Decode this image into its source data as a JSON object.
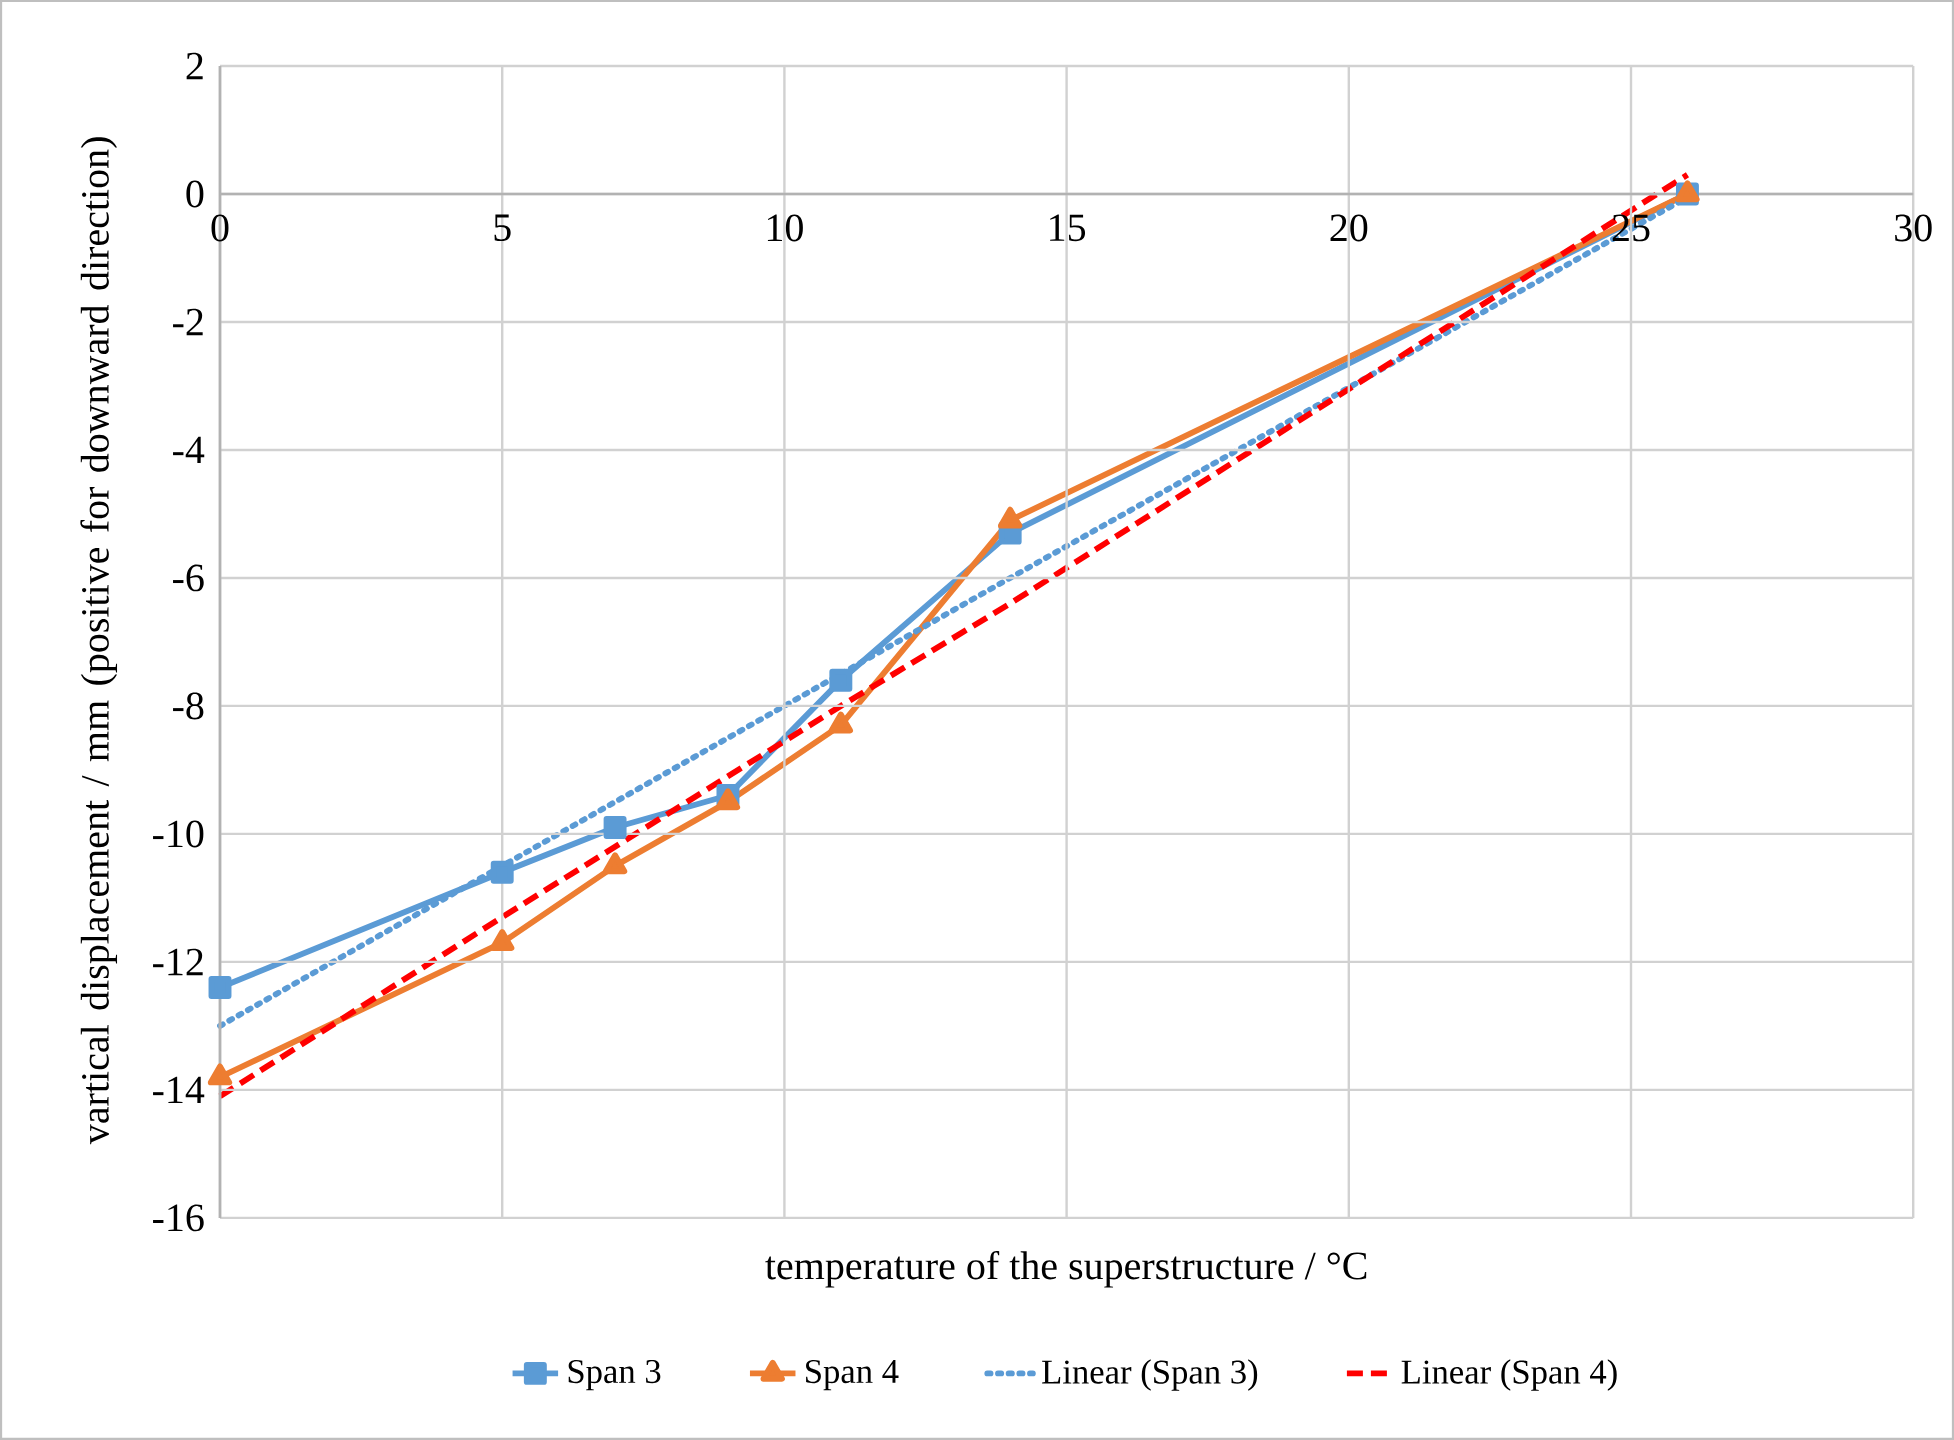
{
  "chart_data": {
    "type": "line",
    "xlabel": "temperature of the superstructure / °C",
    "ylabel": "vartical displacement / mm (positive for downward direction)",
    "x": [
      0,
      5,
      7,
      9,
      11,
      14,
      26
    ],
    "series": [
      {
        "name": "Span 3",
        "color": "#5b9bd5",
        "marker": "square",
        "line_style": "solid",
        "values": [
          -12.4,
          -10.6,
          -9.9,
          -9.4,
          -7.6,
          -5.3,
          0
        ]
      },
      {
        "name": "Span 4",
        "color": "#ed7d31",
        "marker": "triangle",
        "line_style": "solid",
        "values": [
          -13.8,
          -11.7,
          -10.5,
          -9.5,
          -8.3,
          -5.1,
          0
        ]
      },
      {
        "name": "Linear (Span 3)",
        "color": "#5b9bd5",
        "marker": "none",
        "line_style": "dotted",
        "values": [
          -13.0,
          -10.5,
          -9.5,
          -8.5,
          -7.5,
          -6.0,
          -0.05
        ]
      },
      {
        "name": "Linear (Span 4)",
        "color": "#ff0000",
        "marker": "none",
        "line_style": "dashed",
        "values": [
          -14.1,
          -11.3,
          -10.2,
          -9.1,
          -8.0,
          -6.4,
          0.3
        ]
      }
    ],
    "xlim": [
      0,
      30
    ],
    "ylim": [
      -16,
      2
    ],
    "xticks": [
      0,
      5,
      10,
      15,
      20,
      25,
      30
    ],
    "yticks": [
      2,
      0,
      -2,
      -4,
      -6,
      -8,
      -10,
      -12,
      -14,
      -16
    ],
    "grid": true,
    "legend": "bottom"
  }
}
